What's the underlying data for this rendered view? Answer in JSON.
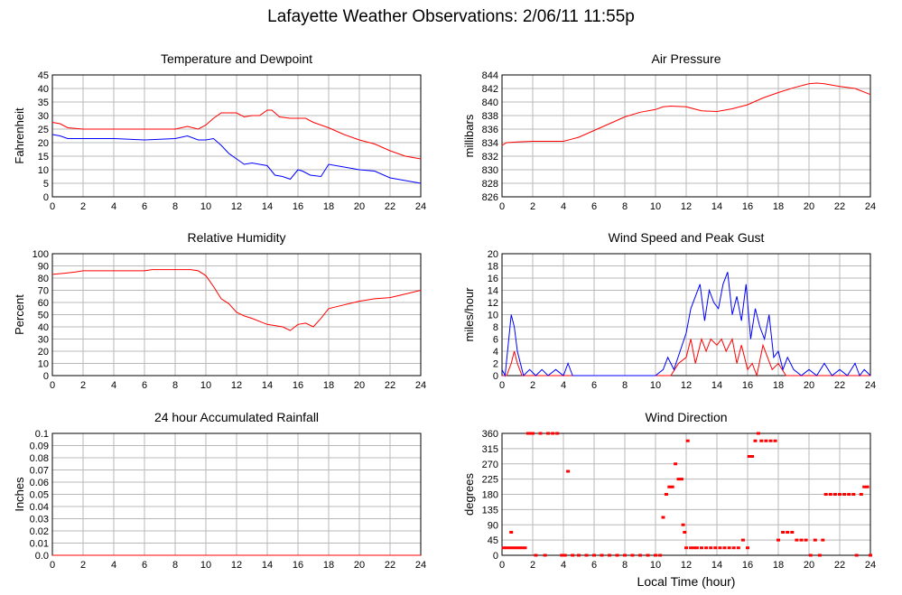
{
  "title": "Lafayette Weather Observations: 2/06/11 11:55p",
  "x_axis_label": "Local Time (hour)",
  "chart_data": [
    {
      "id": "temp",
      "type": "line",
      "title": "Temperature and Dewpoint",
      "ylabel": "Fahrenheit",
      "xlim": [
        0,
        24
      ],
      "ylim": [
        0,
        45
      ],
      "x_ticks": [
        0,
        2,
        4,
        6,
        8,
        10,
        12,
        14,
        16,
        18,
        20,
        22,
        24
      ],
      "y_ticks": [
        0,
        5,
        10,
        15,
        20,
        25,
        30,
        35,
        40,
        45
      ],
      "y_tick_labels": [
        "0",
        "5",
        "10",
        "15",
        "20",
        "25",
        "30",
        "35",
        "40",
        "45"
      ],
      "grid": true,
      "series": [
        {
          "color": "#ff0000",
          "x": [
            0,
            0.5,
            1,
            2,
            4,
            6,
            8,
            8.8,
            9.5,
            10,
            10.5,
            11,
            11.5,
            12,
            12.5,
            13,
            13.5,
            14,
            14.3,
            14.8,
            15.5,
            16,
            16.5,
            17,
            18,
            19,
            20,
            21,
            22,
            23,
            24
          ],
          "y": [
            27.5,
            27,
            25.5,
            25,
            25,
            25,
            25,
            26,
            25,
            26.5,
            29,
            31,
            31,
            31,
            29.5,
            30,
            30,
            32,
            32,
            29.5,
            29,
            29,
            29,
            27.5,
            25.5,
            23,
            21,
            19.5,
            17,
            15,
            14
          ]
        },
        {
          "color": "#0000ff",
          "x": [
            0,
            0.5,
            1,
            2,
            4,
            6,
            8,
            8.8,
            9.5,
            10,
            10.5,
            11,
            11.5,
            12,
            12.5,
            13,
            13.5,
            14,
            14.5,
            15,
            15.5,
            16,
            16.3,
            16.8,
            17.5,
            18,
            19,
            20,
            21,
            22,
            23,
            24
          ],
          "y": [
            23,
            22.5,
            21.5,
            21.5,
            21.5,
            21,
            21.5,
            22.5,
            21,
            21,
            21.5,
            19,
            16,
            14,
            12,
            12.5,
            12,
            11.5,
            8,
            7.5,
            6.5,
            10,
            9.5,
            8,
            7.5,
            12,
            11,
            10,
            9.5,
            7,
            6,
            5
          ]
        }
      ]
    },
    {
      "id": "pressure",
      "type": "line",
      "title": "Air Pressure",
      "ylabel": "millibars",
      "xlim": [
        0,
        24
      ],
      "ylim": [
        826,
        844
      ],
      "x_ticks": [
        0,
        2,
        4,
        6,
        8,
        10,
        12,
        14,
        16,
        18,
        20,
        22,
        24
      ],
      "y_ticks": [
        826,
        828,
        830,
        832,
        834,
        836,
        838,
        840,
        842,
        844
      ],
      "y_tick_labels": [
        "826",
        "828",
        "830",
        "832",
        "834",
        "836",
        "838",
        "840",
        "842",
        "844"
      ],
      "grid": true,
      "series": [
        {
          "color": "#ff0000",
          "x": [
            0,
            0.3,
            1,
            2,
            3,
            4,
            4.5,
            5,
            6,
            7,
            8,
            9,
            10,
            10.5,
            11,
            12,
            13,
            14,
            15,
            16,
            17,
            18,
            19,
            20,
            20.5,
            21,
            22,
            23,
            24
          ],
          "y": [
            833.6,
            834,
            834.1,
            834.2,
            834.2,
            834.2,
            834.5,
            834.8,
            835.8,
            836.8,
            837.8,
            838.5,
            838.9,
            839.3,
            839.4,
            839.3,
            838.7,
            838.6,
            839,
            839.6,
            840.6,
            841.4,
            842.1,
            842.7,
            842.8,
            842.7,
            842.3,
            842,
            841.1
          ]
        }
      ]
    },
    {
      "id": "humidity",
      "type": "line",
      "title": "Relative Humidity",
      "ylabel": "Percent",
      "xlim": [
        0,
        24
      ],
      "ylim": [
        0,
        100
      ],
      "x_ticks": [
        0,
        2,
        4,
        6,
        8,
        10,
        12,
        14,
        16,
        18,
        20,
        22,
        24
      ],
      "y_ticks": [
        0,
        10,
        20,
        30,
        40,
        50,
        60,
        70,
        80,
        90,
        100
      ],
      "y_tick_labels": [
        "0",
        "10",
        "20",
        "30",
        "40",
        "50",
        "60",
        "70",
        "80",
        "90",
        "100"
      ],
      "grid": true,
      "series": [
        {
          "color": "#ff0000",
          "x": [
            0,
            0.8,
            1.5,
            2,
            4,
            6,
            6.5,
            8,
            9,
            9.5,
            10,
            10.5,
            11,
            11.5,
            12,
            12.5,
            13,
            14,
            14.5,
            15,
            15.5,
            16,
            16.5,
            17,
            17.5,
            18,
            19,
            20,
            21,
            22,
            23,
            24
          ],
          "y": [
            83,
            84,
            85,
            86,
            86,
            86,
            87,
            87,
            87,
            86,
            82,
            73,
            63,
            59,
            52,
            49,
            47,
            42,
            41,
            40,
            37,
            42,
            43,
            40,
            47,
            55,
            58,
            61,
            63,
            64,
            67,
            70
          ]
        }
      ]
    },
    {
      "id": "wind",
      "type": "line",
      "title": "Wind Speed and Peak Gust",
      "ylabel": "miles/hour",
      "xlim": [
        0,
        24
      ],
      "ylim": [
        0,
        20
      ],
      "x_ticks": [
        0,
        2,
        4,
        6,
        8,
        10,
        12,
        14,
        16,
        18,
        20,
        22,
        24
      ],
      "y_ticks": [
        0,
        2,
        4,
        6,
        8,
        10,
        12,
        14,
        16,
        18,
        20
      ],
      "y_tick_labels": [
        "0",
        "2",
        "4",
        "6",
        "8",
        "10",
        "12",
        "14",
        "16",
        "18",
        "20"
      ],
      "grid": true,
      "series": [
        {
          "color": "#ff0000",
          "x": [
            0,
            0.3,
            0.6,
            0.8,
            1,
            1.3,
            1.5,
            2,
            10,
            11,
            11.5,
            12,
            12.3,
            12.6,
            13,
            13.3,
            13.6,
            14,
            14.3,
            14.6,
            15,
            15.3,
            15.6,
            16,
            16.3,
            16.6,
            17,
            17.3,
            17.6,
            18,
            18.5,
            24
          ],
          "y": [
            0,
            0,
            2,
            4,
            2,
            0,
            0,
            0,
            0,
            0,
            2,
            3,
            6,
            2,
            6,
            4,
            6,
            5,
            6,
            4,
            6,
            2,
            5,
            1,
            2,
            0,
            5,
            3,
            1,
            2,
            0,
            0
          ]
        },
        {
          "color": "#0000ff",
          "x": [
            0,
            0.2,
            0.4,
            0.6,
            0.8,
            1,
            1.2,
            1.4,
            1.8,
            2.2,
            2.6,
            3,
            3.5,
            4,
            4.3,
            4.6,
            10,
            10.5,
            10.8,
            11.2,
            11.6,
            12,
            12.3,
            12.6,
            12.9,
            13.2,
            13.5,
            13.8,
            14.1,
            14.4,
            14.7,
            15,
            15.3,
            15.6,
            15.9,
            16.2,
            16.5,
            16.8,
            17.1,
            17.4,
            17.7,
            18,
            18.3,
            18.6,
            19,
            19.5,
            20,
            20.5,
            21,
            21.5,
            22,
            22.5,
            23,
            23.3,
            23.6,
            24
          ],
          "y": [
            1,
            0,
            5,
            10,
            8,
            4,
            2,
            0,
            1,
            0,
            1,
            0,
            1,
            0,
            2,
            0,
            0,
            1,
            3,
            1,
            4,
            7,
            11,
            13,
            15,
            9,
            14,
            12,
            11,
            15,
            17,
            10,
            13,
            9,
            15,
            6,
            11,
            8,
            6,
            10,
            3,
            4,
            1,
            3,
            1,
            0,
            1,
            0,
            2,
            0,
            1,
            0,
            2,
            0,
            1,
            0
          ]
        }
      ]
    },
    {
      "id": "rain",
      "type": "line",
      "title": "24 hour Accumulated Rainfall",
      "ylabel": "Inches",
      "xlim": [
        0,
        24
      ],
      "ylim": [
        0,
        0.1
      ],
      "x_ticks": [
        0,
        2,
        4,
        6,
        8,
        10,
        12,
        14,
        16,
        18,
        20,
        22,
        24
      ],
      "y_ticks": [
        0,
        0.01,
        0.02,
        0.03,
        0.04,
        0.05,
        0.06,
        0.07,
        0.08,
        0.09,
        0.1
      ],
      "y_tick_labels": [
        "0.0",
        "0.01",
        "0.02",
        "0.03",
        "0.04",
        "0.05",
        "0.06",
        "0.07",
        "0.08",
        "0.09",
        "0.1"
      ],
      "grid": true,
      "series": [
        {
          "color": "#ff0000",
          "x": [
            0,
            24
          ],
          "y": [
            0,
            0
          ]
        }
      ]
    },
    {
      "id": "direction",
      "type": "scatter",
      "title": "Wind Direction",
      "ylabel": "degrees",
      "xlim": [
        0,
        24
      ],
      "ylim": [
        0,
        360
      ],
      "x_ticks": [
        0,
        2,
        4,
        6,
        8,
        10,
        12,
        14,
        16,
        18,
        20,
        22,
        24
      ],
      "y_ticks": [
        0,
        45,
        90,
        135,
        180,
        225,
        270,
        315,
        360
      ],
      "y_tick_labels": [
        "0",
        "45",
        "90",
        "135",
        "180",
        "225",
        "270",
        "315",
        "360"
      ],
      "grid": true,
      "series": [
        {
          "color": "#ff0000",
          "x": [
            0.1,
            0.3,
            0.5,
            0.6,
            0.7,
            0.9,
            1.1,
            1.3,
            1.5,
            1.7,
            1.8,
            2.0,
            2.2,
            2.5,
            2.8,
            3.0,
            3.3,
            3.6,
            3.9,
            4.1,
            4.3,
            4.6,
            5,
            5.5,
            6,
            6.5,
            7,
            7.5,
            8,
            8.5,
            9,
            9.5,
            10,
            10.3,
            10.5,
            10.7,
            10.9,
            11.1,
            11.3,
            11.5,
            11.7,
            11.8,
            11.9,
            12,
            12.1,
            12.3,
            12.5,
            12.7,
            13,
            13.3,
            13.6,
            13.9,
            14.2,
            14.5,
            14.8,
            15.1,
            15.4,
            15.7,
            16,
            16.1,
            16.3,
            16.5,
            16.7,
            16.9,
            17.2,
            17.5,
            17.8,
            18,
            18.3,
            18.6,
            18.9,
            19.2,
            19.5,
            19.8,
            20.1,
            20.4,
            20.7,
            20.9,
            21.1,
            21.4,
            21.7,
            22,
            22.3,
            22.6,
            22.9,
            23.1,
            23.4,
            23.6,
            23.8,
            24
          ],
          "y": [
            22,
            22,
            22,
            68,
            22,
            22,
            22,
            22,
            22,
            360,
            360,
            360,
            0,
            360,
            0,
            360,
            360,
            360,
            0,
            0,
            248,
            0,
            0,
            0,
            0,
            0,
            0,
            0,
            0,
            0,
            0,
            0,
            0,
            0,
            112,
            180,
            202,
            202,
            270,
            225,
            225,
            90,
            68,
            22,
            338,
            22,
            22,
            22,
            22,
            22,
            22,
            22,
            22,
            22,
            22,
            22,
            22,
            45,
            22,
            292,
            292,
            338,
            360,
            338,
            338,
            338,
            338,
            45,
            68,
            68,
            68,
            45,
            45,
            45,
            0,
            45,
            0,
            45,
            180,
            180,
            180,
            180,
            180,
            180,
            180,
            0,
            180,
            202,
            202,
            0
          ]
        }
      ]
    }
  ]
}
